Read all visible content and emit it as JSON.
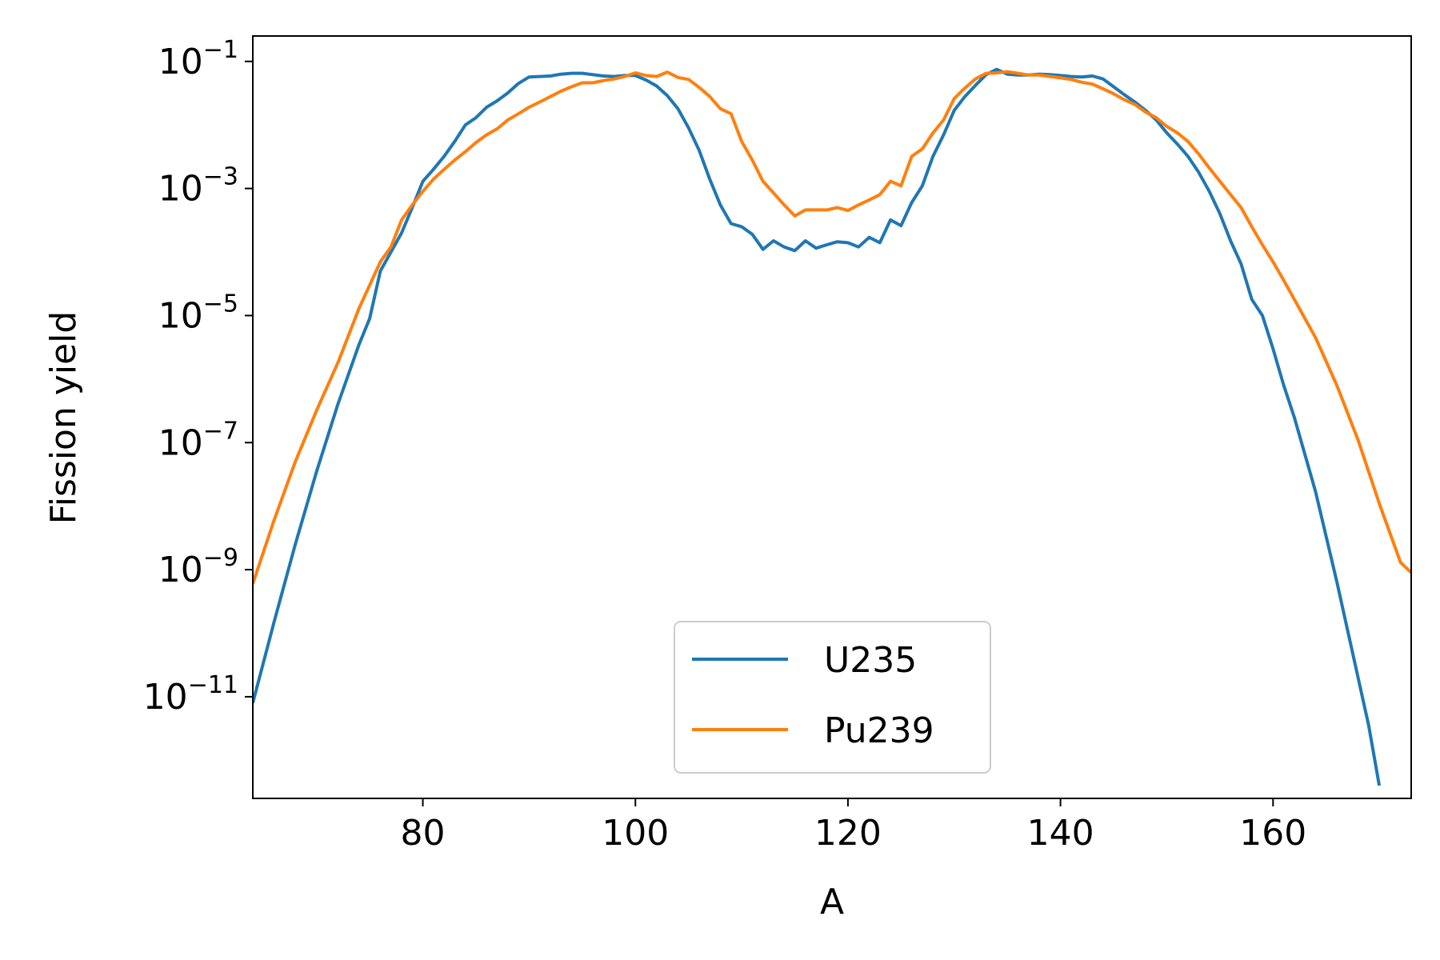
{
  "chart_data": {
    "type": "line",
    "xlabel": "A",
    "ylabel": "Fission yield",
    "xlim": [
      64,
      173
    ],
    "ylim_exponent": [
      -12.6,
      -0.6
    ],
    "yscale": "log",
    "x_ticks": [
      80,
      100,
      120,
      140,
      160
    ],
    "y_ticks": [
      {
        "exp": -1,
        "base": "10",
        "sup": "−1"
      },
      {
        "exp": -3,
        "base": "10",
        "sup": "−3"
      },
      {
        "exp": -5,
        "base": "10",
        "sup": "−5"
      },
      {
        "exp": -7,
        "base": "10",
        "sup": "−7"
      },
      {
        "exp": -9,
        "base": "10",
        "sup": "−9"
      },
      {
        "exp": -11,
        "base": "10",
        "sup": "−11"
      }
    ],
    "legend_position": "lower center",
    "grid": false,
    "series": [
      {
        "name": "U235",
        "color": "#1f77b4",
        "points": [
          [
            64,
            8e-12
          ],
          [
            66,
            1.5e-10
          ],
          [
            68,
            2.5e-09
          ],
          [
            70,
            3.5e-08
          ],
          [
            72,
            4e-07
          ],
          [
            74,
            3.5e-06
          ],
          [
            75,
            9e-06
          ],
          [
            76,
            5e-05
          ],
          [
            77,
            0.0001
          ],
          [
            78,
            0.0002
          ],
          [
            79,
            0.0005
          ],
          [
            80,
            0.0013
          ],
          [
            81,
            0.002
          ],
          [
            82,
            0.0032
          ],
          [
            83,
            0.0055
          ],
          [
            84,
            0.01
          ],
          [
            85,
            0.013
          ],
          [
            86,
            0.019
          ],
          [
            87,
            0.024
          ],
          [
            88,
            0.032
          ],
          [
            89,
            0.045
          ],
          [
            90,
            0.057
          ],
          [
            91,
            0.058
          ],
          [
            92,
            0.059
          ],
          [
            93,
            0.063
          ],
          [
            94,
            0.065
          ],
          [
            95,
            0.065
          ],
          [
            96,
            0.062
          ],
          [
            97,
            0.059
          ],
          [
            98,
            0.058
          ],
          [
            99,
            0.06
          ],
          [
            100,
            0.06
          ],
          [
            101,
            0.051
          ],
          [
            102,
            0.041
          ],
          [
            103,
            0.029
          ],
          [
            104,
            0.018
          ],
          [
            105,
            0.009
          ],
          [
            106,
            0.004
          ],
          [
            107,
            0.0014
          ],
          [
            108,
            0.00055
          ],
          [
            109,
            0.00028
          ],
          [
            110,
            0.00025
          ],
          [
            111,
            0.00019
          ],
          [
            112,
            0.00011
          ],
          [
            113,
            0.00015
          ],
          [
            114,
            0.00012
          ],
          [
            115,
            0.000105
          ],
          [
            116,
            0.00015
          ],
          [
            117,
            0.000115
          ],
          [
            118,
            0.00013
          ],
          [
            119,
            0.000145
          ],
          [
            120,
            0.00014
          ],
          [
            121,
            0.00012
          ],
          [
            122,
            0.00017
          ],
          [
            123,
            0.00014
          ],
          [
            124,
            0.00032
          ],
          [
            125,
            0.00026
          ],
          [
            126,
            0.0006
          ],
          [
            127,
            0.0011
          ],
          [
            128,
            0.0032
          ],
          [
            129,
            0.007
          ],
          [
            130,
            0.017
          ],
          [
            131,
            0.028
          ],
          [
            132,
            0.042
          ],
          [
            133,
            0.062
          ],
          [
            134,
            0.075
          ],
          [
            135,
            0.063
          ],
          [
            136,
            0.061
          ],
          [
            137,
            0.061
          ],
          [
            138,
            0.063
          ],
          [
            139,
            0.062
          ],
          [
            140,
            0.06
          ],
          [
            141,
            0.058
          ],
          [
            142,
            0.057
          ],
          [
            143,
            0.059
          ],
          [
            144,
            0.053
          ],
          [
            145,
            0.04
          ],
          [
            146,
            0.03
          ],
          [
            147,
            0.023
          ],
          [
            148,
            0.017
          ],
          [
            149,
            0.012
          ],
          [
            150,
            0.0075
          ],
          [
            151,
            0.005
          ],
          [
            152,
            0.0032
          ],
          [
            153,
            0.0018
          ],
          [
            154,
            0.0009
          ],
          [
            155,
            0.0004
          ],
          [
            156,
            0.00015
          ],
          [
            157,
            6.5e-05
          ],
          [
            158,
            1.8e-05
          ],
          [
            159,
            1e-05
          ],
          [
            160,
            3e-06
          ],
          [
            161,
            8e-07
          ],
          [
            162,
            2.5e-07
          ],
          [
            164,
            1.7e-08
          ],
          [
            166,
            6.5e-10
          ],
          [
            168,
            2e-11
          ],
          [
            169,
            3.5e-12
          ],
          [
            170,
            4e-13
          ]
        ]
      },
      {
        "name": "Pu239",
        "color": "#ff7f0e",
        "points": [
          [
            64,
            6e-10
          ],
          [
            66,
            6e-09
          ],
          [
            68,
            5e-08
          ],
          [
            70,
            3.2e-07
          ],
          [
            72,
            1.8e-06
          ],
          [
            74,
            1.3e-05
          ],
          [
            76,
            7e-05
          ],
          [
            77,
            0.00012
          ],
          [
            78,
            0.00032
          ],
          [
            79,
            0.00055
          ],
          [
            80,
            0.0009
          ],
          [
            81,
            0.0014
          ],
          [
            82,
            0.002
          ],
          [
            83,
            0.0028
          ],
          [
            84,
            0.0038
          ],
          [
            85,
            0.0053
          ],
          [
            86,
            0.007
          ],
          [
            87,
            0.0087
          ],
          [
            88,
            0.012
          ],
          [
            89,
            0.015
          ],
          [
            90,
            0.019
          ],
          [
            91,
            0.023
          ],
          [
            92,
            0.028
          ],
          [
            93,
            0.034
          ],
          [
            94,
            0.04
          ],
          [
            95,
            0.046
          ],
          [
            96,
            0.046
          ],
          [
            97,
            0.05
          ],
          [
            98,
            0.053
          ],
          [
            99,
            0.058
          ],
          [
            100,
            0.066
          ],
          [
            101,
            0.06
          ],
          [
            102,
            0.058
          ],
          [
            103,
            0.068
          ],
          [
            104,
            0.056
          ],
          [
            105,
            0.052
          ],
          [
            106,
            0.039
          ],
          [
            107,
            0.028
          ],
          [
            108,
            0.018
          ],
          [
            109,
            0.015
          ],
          [
            110,
            0.0055
          ],
          [
            111,
            0.0028
          ],
          [
            112,
            0.0013
          ],
          [
            113,
            0.00085
          ],
          [
            114,
            0.00055
          ],
          [
            115,
            0.00037
          ],
          [
            116,
            0.00046
          ],
          [
            117,
            0.00046
          ],
          [
            118,
            0.00046
          ],
          [
            119,
            0.0005
          ],
          [
            120,
            0.00045
          ],
          [
            121,
            0.00055
          ],
          [
            122,
            0.00066
          ],
          [
            123,
            0.0008
          ],
          [
            124,
            0.0013
          ],
          [
            125,
            0.0011
          ],
          [
            126,
            0.0032
          ],
          [
            127,
            0.0042
          ],
          [
            128,
            0.0075
          ],
          [
            129,
            0.012
          ],
          [
            130,
            0.026
          ],
          [
            131,
            0.038
          ],
          [
            132,
            0.053
          ],
          [
            133,
            0.065
          ],
          [
            134,
            0.066
          ],
          [
            135,
            0.069
          ],
          [
            136,
            0.065
          ],
          [
            137,
            0.061
          ],
          [
            138,
            0.061
          ],
          [
            139,
            0.058
          ],
          [
            140,
            0.055
          ],
          [
            141,
            0.052
          ],
          [
            142,
            0.047
          ],
          [
            143,
            0.044
          ],
          [
            144,
            0.037
          ],
          [
            145,
            0.031
          ],
          [
            146,
            0.025
          ],
          [
            147,
            0.021
          ],
          [
            148,
            0.016
          ],
          [
            149,
            0.013
          ],
          [
            150,
            0.0095
          ],
          [
            151,
            0.0075
          ],
          [
            152,
            0.0055
          ],
          [
            153,
            0.0035
          ],
          [
            154,
            0.0021
          ],
          [
            155,
            0.0013
          ],
          [
            156,
            0.0008
          ],
          [
            157,
            0.0005
          ],
          [
            158,
            0.00025
          ],
          [
            159,
            0.00013
          ],
          [
            160,
            7e-05
          ],
          [
            161,
            3.6e-05
          ],
          [
            162,
            1.8e-05
          ],
          [
            164,
            4.5e-06
          ],
          [
            166,
            8e-07
          ],
          [
            168,
            1.1e-07
          ],
          [
            170,
            1.1e-08
          ],
          [
            172,
            1.3e-09
          ],
          [
            173,
            9e-10
          ]
        ]
      }
    ]
  }
}
